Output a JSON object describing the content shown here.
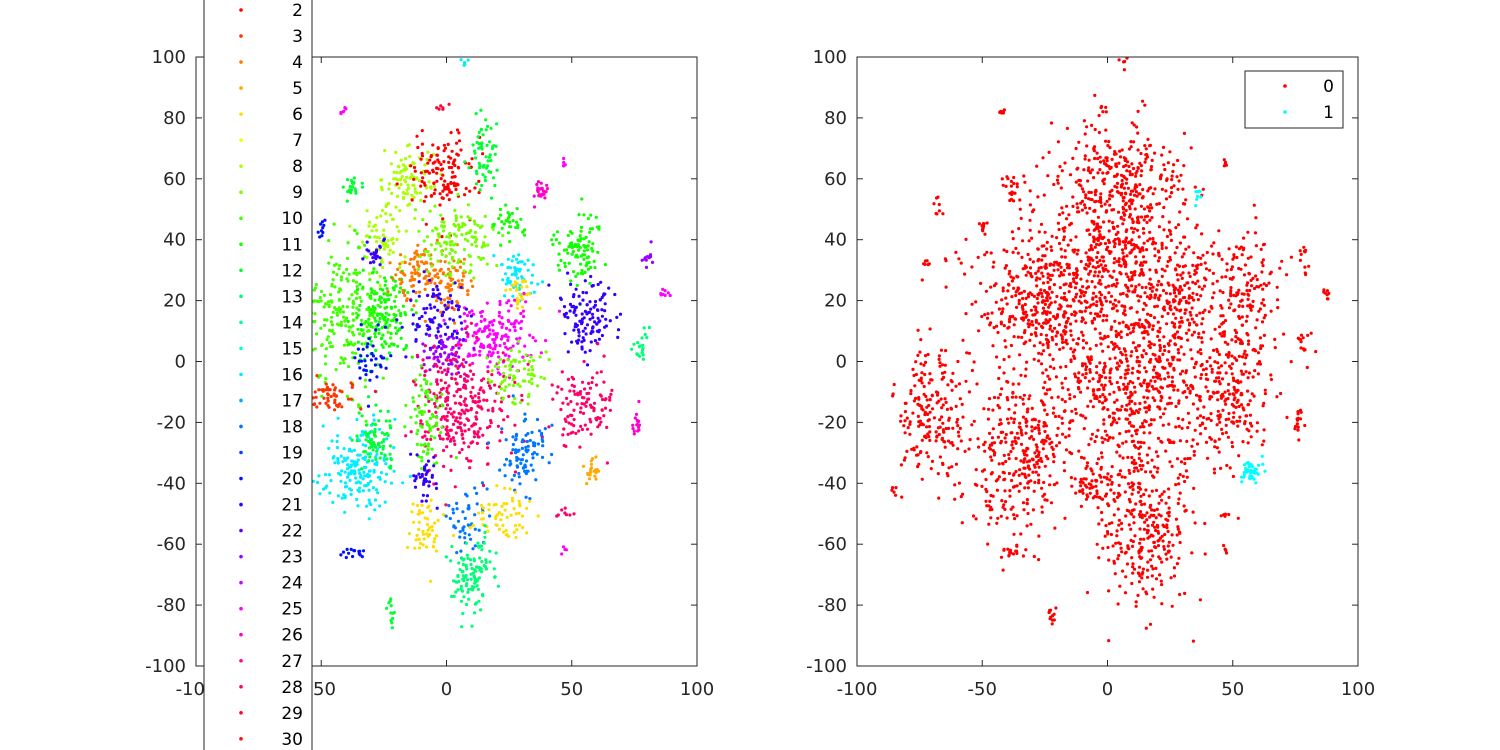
{
  "chart_data": [
    {
      "type": "scatter",
      "title": "",
      "xlabel": "",
      "ylabel": "",
      "xlim": [
        -100,
        100
      ],
      "ylim": [
        -100,
        100
      ],
      "xticks": [
        "-100",
        "-50",
        "0",
        "50",
        "100"
      ],
      "yticks": [
        "-100",
        "-80",
        "-60",
        "-40",
        "-20",
        "0",
        "20",
        "40",
        "60",
        "80",
        "100"
      ],
      "grid": false,
      "legend": {
        "placement": "outside-left",
        "entries": [
          "2",
          "3",
          "4",
          "5",
          "6",
          "7",
          "8",
          "9",
          "10",
          "11",
          "12",
          "13",
          "14",
          "15",
          "16",
          "17",
          "18",
          "19",
          "20",
          "21",
          "22",
          "23",
          "24",
          "25",
          "26",
          "27",
          "28",
          "29",
          "30"
        ],
        "colors": [
          "#ff0000",
          "#ff3300",
          "#ff7700",
          "#ffaa00",
          "#ffdd00",
          "#eeff00",
          "#aaff00",
          "#77ff00",
          "#44ff00",
          "#11ff00",
          "#00ff33",
          "#00ff77",
          "#00ffaa",
          "#00ffdd",
          "#00eeff",
          "#00aaff",
          "#0077ff",
          "#0044ff",
          "#0011ff",
          "#3300ff",
          "#6600ff",
          "#9900ff",
          "#cc00ff",
          "#ff00ff",
          "#ff00cc",
          "#ff0099",
          "#ff0066",
          "#ff0033",
          "#ff1111"
        ]
      },
      "clusters": [
        {
          "cx": -40,
          "cy": 15,
          "sx": 9,
          "sy": 11,
          "n": 240,
          "color": "#44ff00"
        },
        {
          "cx": -25,
          "cy": 15,
          "sx": 6,
          "sy": 7,
          "n": 150,
          "color": "#11ff00"
        },
        {
          "cx": -15,
          "cy": 60,
          "sx": 5,
          "sy": 5,
          "n": 90,
          "color": "#aaff00"
        },
        {
          "cx": -2,
          "cy": 62,
          "sx": 7,
          "sy": 7,
          "n": 130,
          "color": "#ff0000"
        },
        {
          "cx": 15,
          "cy": 68,
          "sx": 3,
          "sy": 7,
          "n": 60,
          "color": "#00ff33"
        },
        {
          "cx": -10,
          "cy": 30,
          "sx": 6,
          "sy": 5,
          "n": 90,
          "color": "#ff7700"
        },
        {
          "cx": 2,
          "cy": 25,
          "sx": 4,
          "sy": 5,
          "n": 70,
          "color": "#ff7700"
        },
        {
          "cx": 5,
          "cy": 40,
          "sx": 7,
          "sy": 6,
          "n": 130,
          "color": "#77ff00"
        },
        {
          "cx": -25,
          "cy": 40,
          "sx": 5,
          "sy": 5,
          "n": 60,
          "color": "#aaff00"
        },
        {
          "cx": -28,
          "cy": 35,
          "sx": 3,
          "sy": 2,
          "n": 25,
          "color": "#3300ff"
        },
        {
          "cx": 25,
          "cy": 45,
          "sx": 3,
          "sy": 3,
          "n": 35,
          "color": "#11ff00"
        },
        {
          "cx": 28,
          "cy": 28,
          "sx": 4,
          "sy": 4,
          "n": 60,
          "color": "#00eeff"
        },
        {
          "cx": 30,
          "cy": 22,
          "sx": 3,
          "sy": 3,
          "n": 30,
          "color": "#ffdd00"
        },
        {
          "cx": 52,
          "cy": 38,
          "sx": 5,
          "sy": 6,
          "n": 100,
          "color": "#11ff00"
        },
        {
          "cx": 57,
          "cy": 15,
          "sx": 6,
          "sy": 6,
          "n": 120,
          "color": "#3300ff"
        },
        {
          "cx": 38,
          "cy": 56,
          "sx": 2,
          "sy": 2,
          "n": 25,
          "color": "#ff00cc"
        },
        {
          "cx": 20,
          "cy": 8,
          "sx": 8,
          "sy": 6,
          "n": 170,
          "color": "#ff00ff"
        },
        {
          "cx": -5,
          "cy": 15,
          "sx": 6,
          "sy": 5,
          "n": 90,
          "color": "#3300ff"
        },
        {
          "cx": 0,
          "cy": 3,
          "sx": 5,
          "sy": 4,
          "n": 70,
          "color": "#9900ff"
        },
        {
          "cx": 5,
          "cy": -15,
          "sx": 9,
          "sy": 10,
          "n": 280,
          "color": "#ff0066"
        },
        {
          "cx": -8,
          "cy": -18,
          "sx": 4,
          "sy": 7,
          "n": 80,
          "color": "#44ff00"
        },
        {
          "cx": 28,
          "cy": -5,
          "sx": 5,
          "sy": 5,
          "n": 80,
          "color": "#77ff00"
        },
        {
          "cx": 55,
          "cy": -15,
          "sx": 6,
          "sy": 7,
          "n": 110,
          "color": "#ff0066"
        },
        {
          "cx": 30,
          "cy": -30,
          "sx": 5,
          "sy": 6,
          "n": 90,
          "color": "#0077ff"
        },
        {
          "cx": -35,
          "cy": -35,
          "sx": 7,
          "sy": 7,
          "n": 180,
          "color": "#00eeff"
        },
        {
          "cx": -28,
          "cy": -25,
          "sx": 4,
          "sy": 5,
          "n": 70,
          "color": "#00ff33"
        },
        {
          "cx": -45,
          "cy": -12,
          "sx": 4,
          "sy": 3,
          "n": 50,
          "color": "#ff3300"
        },
        {
          "cx": -30,
          "cy": 0,
          "sx": 3,
          "sy": 5,
          "n": 40,
          "color": "#0011ff"
        },
        {
          "cx": -8,
          "cy": -38,
          "sx": 3,
          "sy": 4,
          "n": 40,
          "color": "#3300ff"
        },
        {
          "cx": -8,
          "cy": -55,
          "sx": 4,
          "sy": 5,
          "n": 50,
          "color": "#ffdd00"
        },
        {
          "cx": 8,
          "cy": -52,
          "sx": 4,
          "sy": 6,
          "n": 50,
          "color": "#0077ff"
        },
        {
          "cx": 22,
          "cy": -50,
          "sx": 5,
          "sy": 4,
          "n": 60,
          "color": "#ffdd00"
        },
        {
          "cx": 10,
          "cy": -70,
          "sx": 5,
          "sy": 6,
          "n": 110,
          "color": "#00ff77"
        },
        {
          "cx": 58,
          "cy": -36,
          "sx": 2,
          "sy": 2,
          "n": 20,
          "color": "#ffaa00"
        },
        {
          "cx": 78,
          "cy": 5,
          "sx": 2,
          "sy": 3,
          "n": 20,
          "color": "#00ff77"
        },
        {
          "cx": -38,
          "cy": 57,
          "sx": 2,
          "sy": 2,
          "n": 20,
          "color": "#00ff33"
        },
        {
          "cx": -22,
          "cy": -83,
          "sx": 1,
          "sy": 2,
          "n": 12,
          "color": "#00ff33"
        },
        {
          "cx": -38,
          "cy": -63,
          "sx": 3,
          "sy": 1,
          "n": 15,
          "color": "#0011ff"
        },
        {
          "cx": 76,
          "cy": -20,
          "sx": 1,
          "sy": 3,
          "n": 15,
          "color": "#ff00cc"
        },
        {
          "cx": 80,
          "cy": 35,
          "sx": 1,
          "sy": 3,
          "n": 12,
          "color": "#9900ff"
        },
        {
          "cx": 87,
          "cy": 22,
          "sx": 1,
          "sy": 1,
          "n": 8,
          "color": "#ff00ff"
        },
        {
          "cx": -2,
          "cy": 83,
          "sx": 1,
          "sy": 1,
          "n": 6,
          "color": "#ff0033"
        },
        {
          "cx": 7,
          "cy": 98,
          "sx": 1,
          "sy": 1,
          "n": 5,
          "color": "#00eeff"
        },
        {
          "cx": -42,
          "cy": 82,
          "sx": 1,
          "sy": 0.5,
          "n": 6,
          "color": "#ff00ff"
        },
        {
          "cx": 47,
          "cy": 65,
          "sx": 0.5,
          "sy": 1,
          "n": 5,
          "color": "#ff00ff"
        },
        {
          "cx": 48,
          "cy": -50,
          "sx": 2,
          "sy": 0.7,
          "n": 8,
          "color": "#ff0066"
        },
        {
          "cx": 47,
          "cy": -62,
          "sx": 0.5,
          "sy": 1,
          "n": 4,
          "color": "#ff00ff"
        },
        {
          "cx": -50,
          "cy": 43,
          "sx": 1,
          "sy": 2,
          "n": 10,
          "color": "#0011ff"
        }
      ]
    },
    {
      "type": "scatter",
      "title": "",
      "xlabel": "",
      "ylabel": "",
      "xlim": [
        -100,
        100
      ],
      "ylim": [
        -100,
        100
      ],
      "xticks": [
        "-100",
        "-50",
        "0",
        "50",
        "100"
      ],
      "yticks": [
        "-100",
        "-80",
        "-60",
        "-40",
        "-20",
        "0",
        "20",
        "40",
        "60",
        "80",
        "100"
      ],
      "grid": false,
      "legend": {
        "placement": "top-right",
        "entries": [
          "0",
          "1"
        ],
        "colors": [
          "#ff0000",
          "#00ffff"
        ]
      },
      "clusters": [
        {
          "cx": 10,
          "cy": -5,
          "sx": 18,
          "sy": 17,
          "n": 700,
          "color": "#ff0000"
        },
        {
          "cx": -25,
          "cy": 20,
          "sx": 14,
          "sy": 13,
          "n": 450,
          "color": "#ff0000"
        },
        {
          "cx": 5,
          "cy": 35,
          "sx": 12,
          "sy": 12,
          "n": 350,
          "color": "#ff0000"
        },
        {
          "cx": 5,
          "cy": 60,
          "sx": 14,
          "sy": 9,
          "n": 280,
          "color": "#ff0000"
        },
        {
          "cx": -70,
          "cy": -15,
          "sx": 7,
          "sy": 12,
          "n": 200,
          "color": "#ff0000"
        },
        {
          "cx": -35,
          "cy": -30,
          "sx": 10,
          "sy": 13,
          "n": 320,
          "color": "#ff0000"
        },
        {
          "cx": 15,
          "cy": -55,
          "sx": 10,
          "sy": 12,
          "n": 300,
          "color": "#ff0000"
        },
        {
          "cx": 55,
          "cy": 20,
          "sx": 7,
          "sy": 13,
          "n": 180,
          "color": "#ff0000"
        },
        {
          "cx": 48,
          "cy": -12,
          "sx": 8,
          "sy": 11,
          "n": 180,
          "color": "#ff0000"
        },
        {
          "cx": 30,
          "cy": 25,
          "sx": 6,
          "sy": 10,
          "n": 120,
          "color": "#ff0000"
        },
        {
          "cx": -5,
          "cy": -40,
          "sx": 4,
          "sy": 4,
          "n": 50,
          "color": "#ff0000"
        },
        {
          "cx": -38,
          "cy": 57,
          "sx": 2,
          "sy": 2,
          "n": 20,
          "color": "#ff0000"
        },
        {
          "cx": -50,
          "cy": 43,
          "sx": 1,
          "sy": 2,
          "n": 12,
          "color": "#ff0000"
        },
        {
          "cx": -68,
          "cy": 52,
          "sx": 1,
          "sy": 2,
          "n": 8,
          "color": "#ff0000"
        },
        {
          "cx": -72,
          "cy": 32,
          "sx": 1,
          "sy": 1,
          "n": 6,
          "color": "#ff0000"
        },
        {
          "cx": 78,
          "cy": 35,
          "sx": 1,
          "sy": 3,
          "n": 12,
          "color": "#ff0000"
        },
        {
          "cx": 87,
          "cy": 22,
          "sx": 1,
          "sy": 1,
          "n": 8,
          "color": "#ff0000"
        },
        {
          "cx": 78,
          "cy": 5,
          "sx": 2,
          "sy": 3,
          "n": 15,
          "color": "#ff0000"
        },
        {
          "cx": 76,
          "cy": -20,
          "sx": 1,
          "sy": 3,
          "n": 15,
          "color": "#ff0000"
        },
        {
          "cx": -85,
          "cy": -42,
          "sx": 1,
          "sy": 1,
          "n": 5,
          "color": "#ff0000"
        },
        {
          "cx": -22,
          "cy": -83,
          "sx": 1,
          "sy": 2,
          "n": 12,
          "color": "#ff0000"
        },
        {
          "cx": -38,
          "cy": -63,
          "sx": 3,
          "sy": 1,
          "n": 15,
          "color": "#ff0000"
        },
        {
          "cx": 48,
          "cy": -50,
          "sx": 2,
          "sy": 0.7,
          "n": 8,
          "color": "#ff0000"
        },
        {
          "cx": 47,
          "cy": -62,
          "sx": 0.5,
          "sy": 1,
          "n": 4,
          "color": "#ff0000"
        },
        {
          "cx": 47,
          "cy": 65,
          "sx": 0.5,
          "sy": 1,
          "n": 5,
          "color": "#ff0000"
        },
        {
          "cx": 7,
          "cy": 98,
          "sx": 1,
          "sy": 1,
          "n": 5,
          "color": "#ff0000"
        },
        {
          "cx": -2,
          "cy": 83,
          "sx": 1,
          "sy": 1,
          "n": 6,
          "color": "#ff0000"
        },
        {
          "cx": -42,
          "cy": 82,
          "sx": 1,
          "sy": 0.5,
          "n": 6,
          "color": "#ff0000"
        },
        {
          "cx": 57,
          "cy": -36,
          "sx": 2.5,
          "sy": 2,
          "n": 45,
          "color": "#00ffff"
        },
        {
          "cx": 36,
          "cy": 55,
          "sx": 1,
          "sy": 1.5,
          "n": 8,
          "color": "#00ffff"
        }
      ]
    }
  ]
}
